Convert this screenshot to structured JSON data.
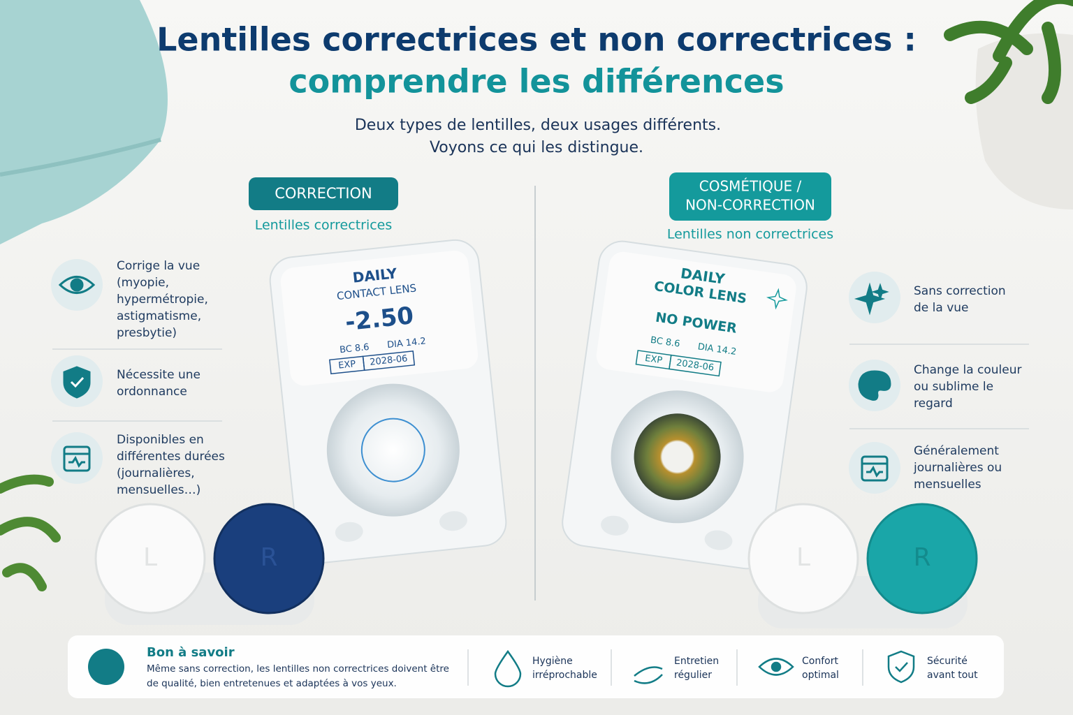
{
  "header": {
    "title_line1": "Lentilles correctrices et non correctrices :",
    "title_line2": "comprendre les différences",
    "subtitle_line1": "Deux types de lentilles, deux usages différents.",
    "subtitle_line2": "Voyons ce qui les distingue."
  },
  "left": {
    "badge": [
      "CORRECTION"
    ],
    "subtitle": "Lentilles correctrices",
    "features": [
      [
        "Corrige la vue",
        "(myopie,",
        "hypermétropie,",
        "astigmatisme,",
        "presbytie)"
      ],
      [
        "Nécessite une",
        "ordonnance"
      ],
      [
        "Disponibles en",
        "différentes durées",
        "(journalières,",
        "mensuelles…)"
      ]
    ],
    "package": {
      "line1": "DAILY",
      "line2": "CONTACT LENS",
      "power": "-2.50",
      "bc": "BC 8.6",
      "dia": "DIA 14.2",
      "exp": "EXP",
      "date": "2028-06"
    },
    "case": [
      "L",
      "R"
    ]
  },
  "right": {
    "badge": [
      "COSMÉTIQUE /",
      "NON-CORRECTION"
    ],
    "subtitle": "Lentilles non correctrices",
    "features": [
      [
        "Sans correction",
        "de la vue"
      ],
      [
        "Change la couleur",
        "ou sublime le",
        "regard"
      ],
      [
        "Généralement",
        "journalières ou",
        "mensuelles"
      ]
    ],
    "package": {
      "line1": "DAILY",
      "line2": "COLOR LENS",
      "power": "NO POWER",
      "bc": "BC 8.6",
      "dia": "DIA 14.2",
      "exp": "EXP",
      "date": "2028-06"
    },
    "case": [
      "L",
      "R"
    ]
  },
  "footer": {
    "title": "Bon à savoir",
    "text": [
      "Même sans correction, les lentilles non correctrices doivent être",
      "de qualité, bien entretenues et adaptées à vos yeux."
    ],
    "items": [
      [
        "Hygiène",
        "irréprochable"
      ],
      [
        "Entretien",
        "régulier"
      ],
      [
        "Confort",
        "optimal"
      ],
      [
        "Sécurité",
        "avant tout"
      ]
    ]
  }
}
